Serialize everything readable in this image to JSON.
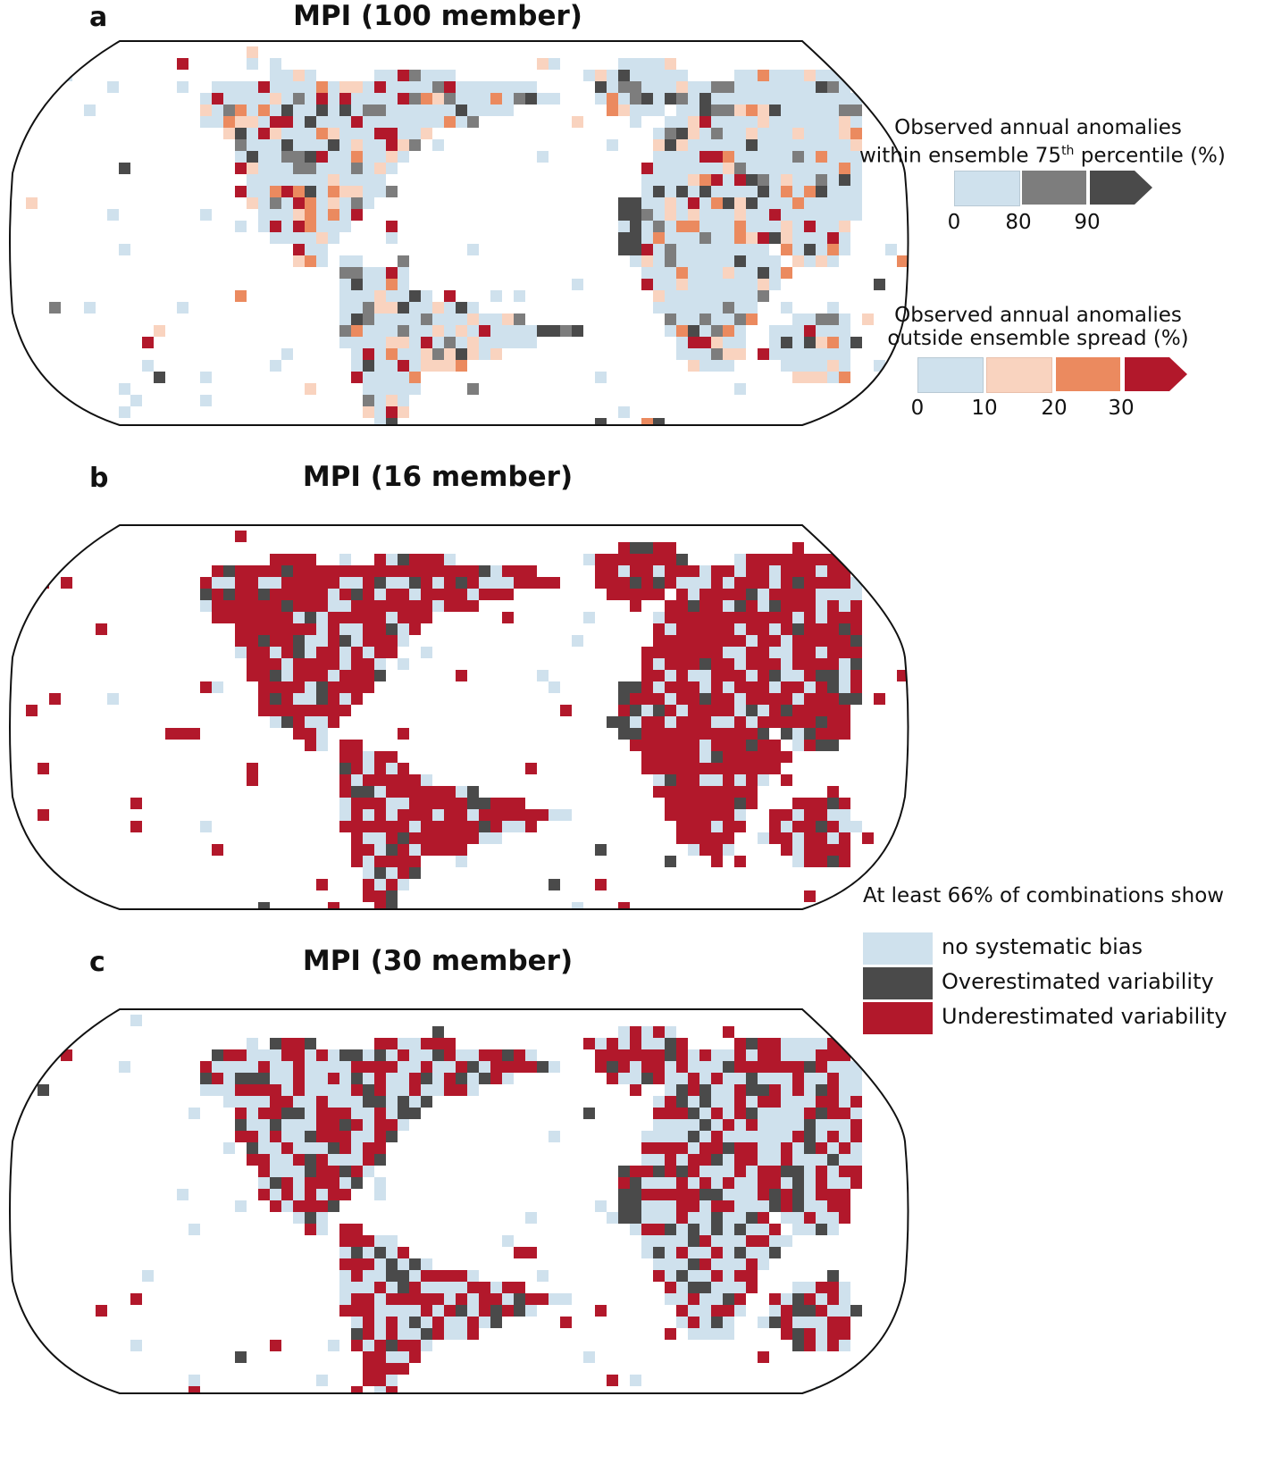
{
  "figure": {
    "panels": [
      {
        "letter": "a",
        "title": "MPI (100 member)"
      },
      {
        "letter": "b",
        "title": "MPI (16 member)"
      },
      {
        "letter": "c",
        "title": "MPI (30 member)"
      }
    ]
  },
  "legend_a1": {
    "title_line1": "Observed annual anomalies",
    "title_line2_pre": "within ensemble 75",
    "title_sup": "th",
    "title_line2_post": " percentile (%)",
    "ticks": [
      "0",
      "80",
      "90"
    ],
    "colors": [
      "#cfe1ed",
      "#7d7d7d",
      "#4a4a4a"
    ]
  },
  "legend_a2": {
    "title_line1": "Observed annual anomalies",
    "title_line2": "outside ensemble spread (%)",
    "ticks": [
      "0",
      "10",
      "20",
      "30"
    ],
    "colors": [
      "#cfe1ed",
      "#f9d3bf",
      "#eb8a5f",
      "#b2182b"
    ]
  },
  "legend_bc": {
    "title": "At least 66% of combinations show",
    "items": [
      {
        "label": "no systematic bias",
        "color": "#cfe1ed"
      },
      {
        "label": "Overestimated variability",
        "color": "#4a4a4a"
      },
      {
        "label": "Underestimated variability",
        "color": "#b2182b"
      }
    ]
  },
  "chart_data": [
    {
      "type": "heatmap",
      "title": "MPI (100 member)",
      "panel": "a",
      "description": "Global gridded map (Robinson projection) of observed annual anomalies relative to ensemble",
      "legends": [
        {
          "title": "Observed annual anomalies within ensemble 75th percentile (%)",
          "bins": [
            "0-80",
            "80-90",
            ">90"
          ],
          "colors": [
            "#cfe1ed",
            "#7d7d7d",
            "#4a4a4a"
          ]
        },
        {
          "title": "Observed annual anomalies outside ensemble spread (%)",
          "bins": [
            "0-10",
            "10-20",
            "20-30",
            ">30"
          ],
          "colors": [
            "#cfe1ed",
            "#f9d3bf",
            "#eb8a5f",
            "#b2182b"
          ]
        }
      ],
      "dominant_category": "0-80 / 0-10 (light blue) over most land",
      "notable_regions": {
        "Sahara/Middle East": ">90 (dark grey)",
        "Amazon": "80-90/>90 grey",
        "Australia": "grey patches",
        "coasts/high latitudes": "orange/red"
      }
    },
    {
      "type": "heatmap",
      "title": "MPI (16 member)",
      "panel": "b",
      "categories": [
        "no systematic bias",
        "Overestimated variability",
        "Underestimated variability"
      ],
      "dominant_category": "Underestimated variability (red) over most land",
      "notable_regions": {
        "Sahara/Middle East": "Overestimated (dark grey)",
        "Central Asia/N. America patches": "no systematic bias"
      }
    },
    {
      "type": "heatmap",
      "title": "MPI (30 member)",
      "panel": "c",
      "categories": [
        "no systematic bias",
        "Overestimated variability",
        "Underestimated variability"
      ],
      "dominant_category": "Mixed: no systematic bias and Underestimated variability",
      "notable_regions": {
        "Sahara/Middle East": "Overestimated (dark grey)",
        "Australia": "mostly no systematic bias with grey",
        "Africa south of Sahara": "red"
      }
    }
  ]
}
